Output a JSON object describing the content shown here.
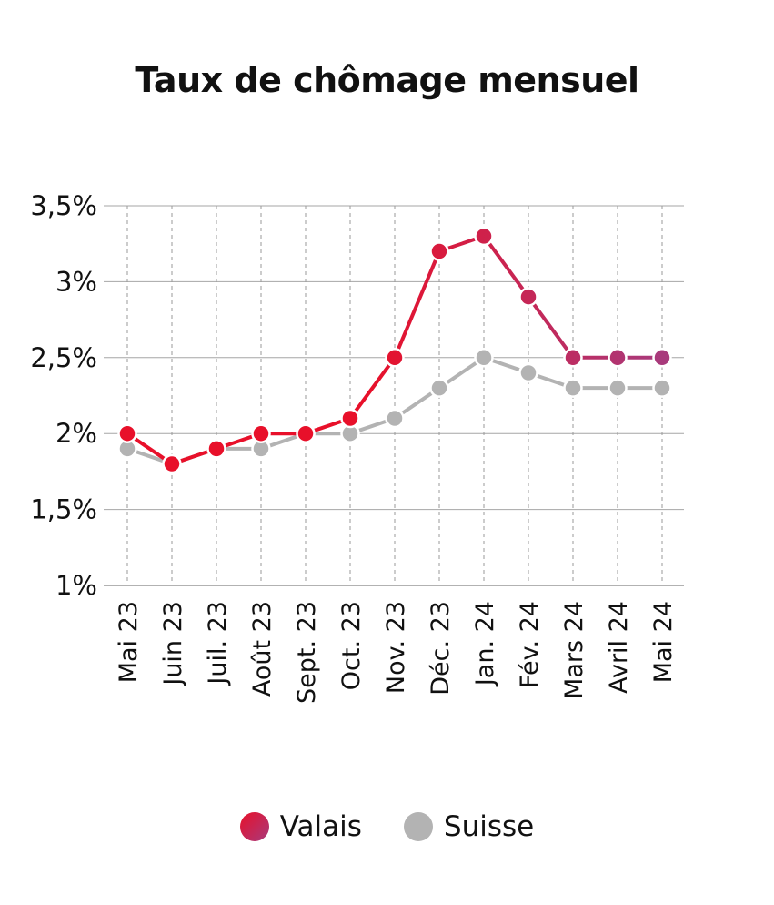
{
  "chart_data": {
    "type": "line",
    "title": "Taux de chômage mensuel",
    "categories": [
      "Mai 23",
      "Juin 23",
      "Juil. 23",
      "Août 23",
      "Sept. 23",
      "Oct. 23",
      "Nov. 23",
      "Déc. 23",
      "Jan. 24",
      "Fév. 24",
      "Mars 24",
      "Avril 24",
      "Mai 24"
    ],
    "ylim": [
      1,
      3.5
    ],
    "yticks": [
      1,
      1.5,
      2,
      2.5,
      3,
      3.5
    ],
    "ytick_labels": [
      "1%",
      "1,5%",
      "2%",
      "2,5%",
      "3%",
      "3,5%"
    ],
    "xlabel": "",
    "ylabel": "",
    "legend_position": "bottom",
    "series": [
      {
        "name": "Suisse",
        "values": [
          1.9,
          1.8,
          1.9,
          1.9,
          2.0,
          2.0,
          2.1,
          2.3,
          2.5,
          2.4,
          2.3,
          2.3,
          2.3
        ],
        "color": "#b3b3b3"
      },
      {
        "name": "Valais",
        "values": [
          2.0,
          1.8,
          1.9,
          2.0,
          2.0,
          2.1,
          2.5,
          3.2,
          3.3,
          2.9,
          2.5,
          2.5,
          2.5
        ],
        "color_start": "#e8102a",
        "color_end": "#a83a7c"
      }
    ]
  }
}
